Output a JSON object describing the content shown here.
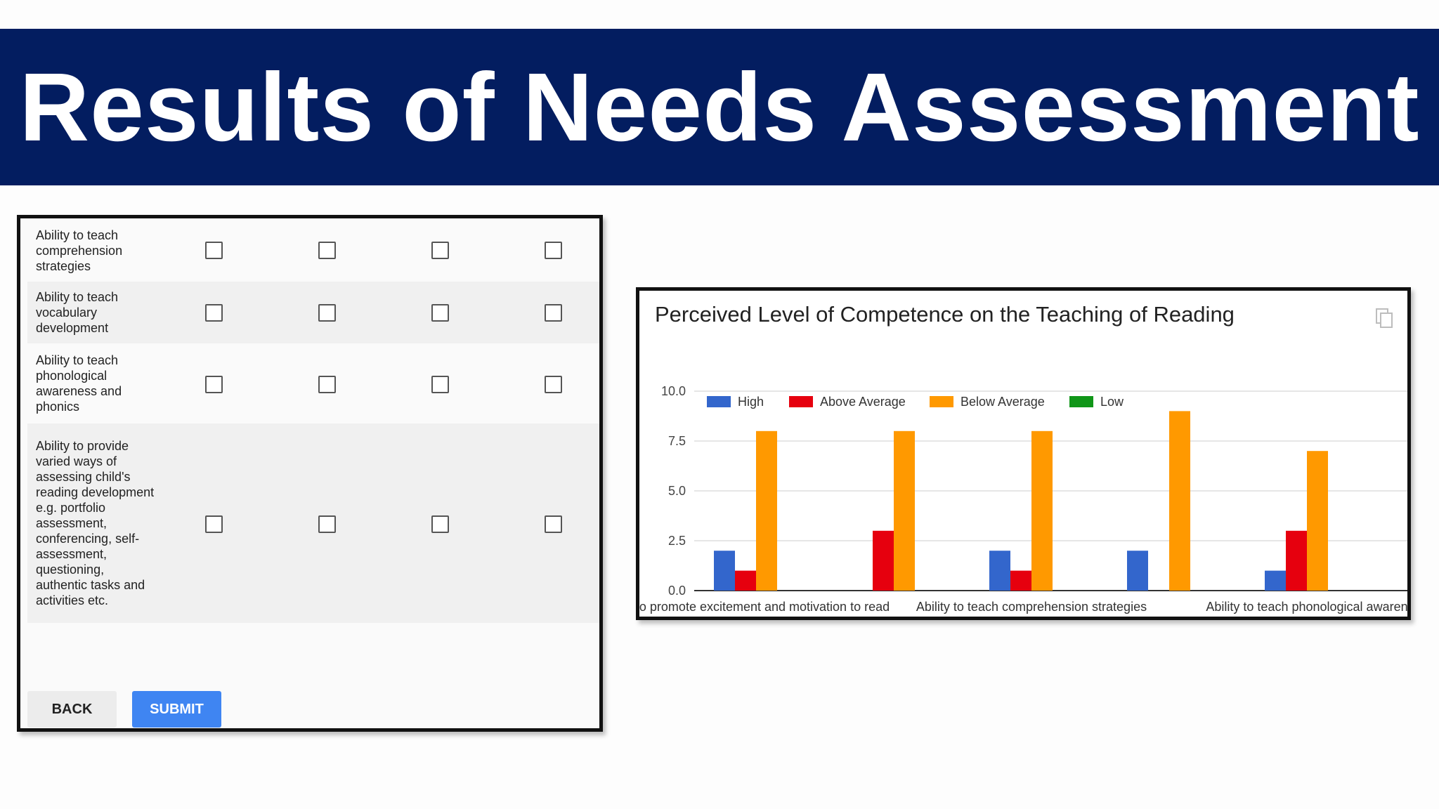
{
  "banner": {
    "title": "Results of Needs Assessment"
  },
  "form": {
    "rows": [
      {
        "label": "Ability to teach comprehension strategies"
      },
      {
        "label": "Ability to teach vocabulary development"
      },
      {
        "label": "Ability to teach phonological awareness and phonics"
      },
      {
        "label": "Ability to provide varied ways of assessing child's reading development e.g. portfolio assessment, conferencing, self-assessment, questioning, authentic tasks and activities etc."
      }
    ],
    "back_label": "BACK",
    "submit_label": "SUBMIT"
  },
  "chart": {
    "copy_icon": "copy-icon"
  },
  "chart_data": {
    "type": "bar",
    "title": "Perceived Level of Competence on the Teaching of Reading",
    "categories": [
      "ty to promote excitement and motivation to read",
      "",
      "Ability to teach comprehension strategies",
      "",
      "Ability to teach phonological awaren"
    ],
    "series": [
      {
        "name": "High",
        "color": "#3366cc",
        "values": [
          2,
          0,
          2,
          2,
          1
        ]
      },
      {
        "name": "Above Average",
        "color": "#e6000e",
        "values": [
          1,
          3,
          1,
          0,
          3
        ]
      },
      {
        "name": "Below Average",
        "color": "#ff9900",
        "values": [
          8,
          8,
          8,
          9,
          7
        ]
      },
      {
        "name": "Low",
        "color": "#109618",
        "values": [
          0,
          0,
          0,
          0,
          0
        ]
      }
    ],
    "yticks": [
      "0.0",
      "2.5",
      "5.0",
      "7.5",
      "10.0"
    ],
    "ylim": [
      0,
      10
    ],
    "grid": true,
    "legend": "top"
  }
}
